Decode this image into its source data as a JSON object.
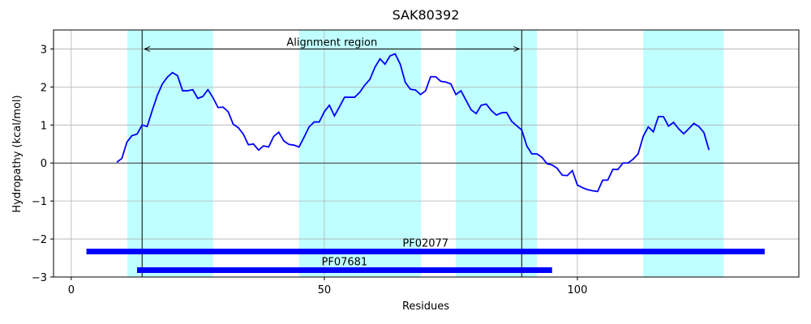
{
  "chart_data": {
    "type": "line",
    "title": "SAK80392",
    "xlabel": "Residues",
    "ylabel": "Hydropathy (kcal/mol)",
    "xlim": [
      -3.5,
      143.75
    ],
    "ylim": [
      -3,
      3.5
    ],
    "xticks": [
      0,
      50,
      100
    ],
    "yticks": [
      {
        "value": -3,
        "label": "−3"
      },
      {
        "value": -2,
        "label": "−2"
      },
      {
        "value": -1,
        "label": "−1"
      },
      0,
      1,
      2,
      3
    ],
    "grid": true,
    "hline": 0,
    "series": [
      {
        "name": "Hydropathy",
        "color": "#0000ff",
        "x": [
          9,
          10,
          11,
          12,
          13,
          14,
          15,
          16,
          17,
          18,
          19,
          20,
          21,
          22,
          23,
          24,
          25,
          26,
          27,
          28,
          29,
          30,
          31,
          32,
          33,
          34,
          35,
          36,
          37,
          38,
          39,
          40,
          41,
          42,
          43,
          44,
          45,
          46,
          47,
          48,
          49,
          50,
          51,
          52,
          53,
          54,
          55,
          56,
          57,
          58,
          59,
          60,
          61,
          62,
          63,
          64,
          65,
          66,
          67,
          68,
          69,
          70,
          71,
          72,
          73,
          74,
          75,
          76,
          77,
          78,
          79,
          80,
          81,
          82,
          83,
          84,
          85,
          86,
          87,
          88,
          89,
          90,
          91,
          92,
          93,
          94,
          95,
          96,
          97,
          98,
          99,
          100,
          101,
          102,
          103,
          104,
          105,
          106,
          107,
          108,
          109,
          110,
          111,
          112,
          113,
          114,
          115,
          116,
          117,
          118,
          119,
          120,
          121,
          122,
          123,
          124,
          125,
          126
        ],
        "values": [
          0.02,
          0.12,
          0.55,
          0.72,
          0.76,
          1.0,
          0.96,
          1.38,
          1.78,
          2.08,
          2.26,
          2.38,
          2.3,
          1.9,
          1.9,
          1.93,
          1.7,
          1.75,
          1.93,
          1.72,
          1.46,
          1.47,
          1.35,
          1.02,
          0.93,
          0.76,
          0.48,
          0.5,
          0.34,
          0.45,
          0.42,
          0.7,
          0.81,
          0.58,
          0.49,
          0.47,
          0.42,
          0.68,
          0.95,
          1.08,
          1.08,
          1.35,
          1.52,
          1.24,
          1.48,
          1.73,
          1.73,
          1.73,
          1.86,
          2.05,
          2.2,
          2.52,
          2.74,
          2.6,
          2.82,
          2.87,
          2.6,
          2.12,
          1.94,
          1.92,
          1.8,
          1.9,
          2.27,
          2.27,
          2.15,
          2.13,
          2.08,
          1.8,
          1.9,
          1.65,
          1.4,
          1.3,
          1.52,
          1.55,
          1.38,
          1.26,
          1.32,
          1.33,
          1.1,
          0.98,
          0.87,
          0.45,
          0.24,
          0.24,
          0.15,
          -0.02,
          -0.05,
          -0.14,
          -0.32,
          -0.33,
          -0.2,
          -0.58,
          -0.65,
          -0.7,
          -0.73,
          -0.75,
          -0.45,
          -0.45,
          -0.17,
          -0.17,
          0.0,
          0.0,
          0.1,
          0.24,
          0.7,
          0.95,
          0.82,
          1.22,
          1.22,
          0.97,
          1.07,
          0.9,
          0.77,
          0.9,
          1.04,
          0.96,
          0.8,
          0.34
        ]
      }
    ],
    "shaded_regions": {
      "color": "#c0ffff",
      "spans": [
        [
          11.1,
          28
        ],
        [
          45,
          69.1
        ],
        [
          76,
          92
        ],
        [
          113,
          128.9
        ]
      ]
    },
    "vlines": [
      14,
      89
    ],
    "annotation": {
      "text": "Alignment region",
      "x": [
        14,
        89
      ],
      "y": 3
    },
    "domains": {
      "color": "#0000ff",
      "bars": [
        {
          "name": "PF02077",
          "start": 3,
          "end": 137,
          "y": -2.33
        },
        {
          "name": "PF07681",
          "start": 13,
          "end": 95,
          "y": -2.82
        }
      ]
    }
  }
}
